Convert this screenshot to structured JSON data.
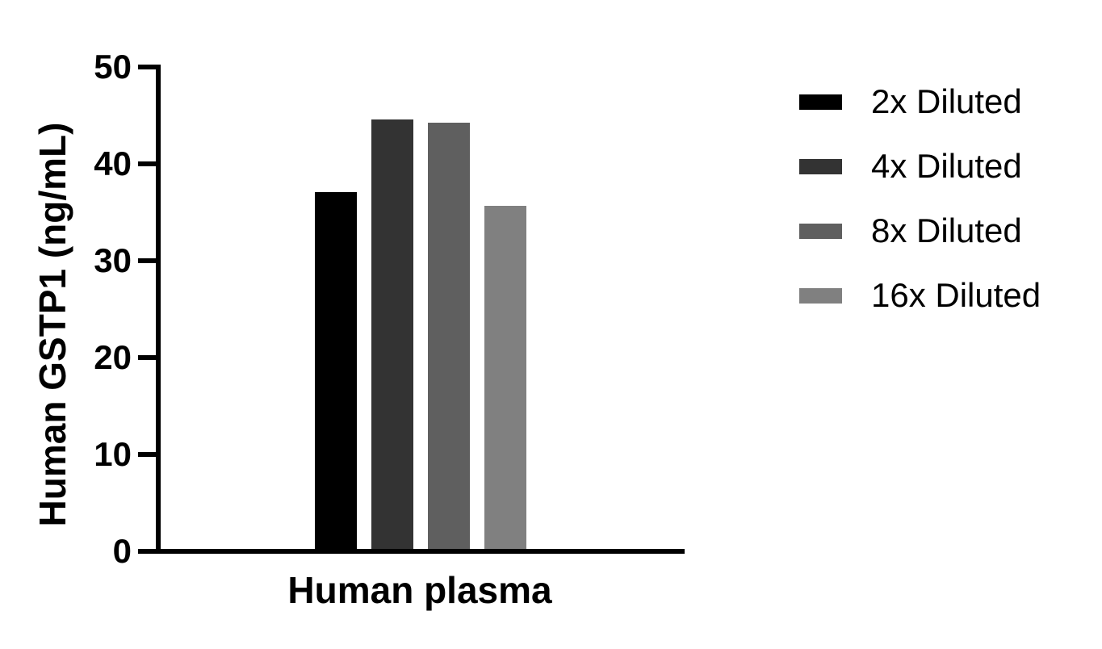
{
  "chart_data": {
    "type": "bar",
    "title": "",
    "xlabel": "",
    "ylabel": "Human GSTP1 (ng/mL)",
    "categories": [
      "Human plasma"
    ],
    "series": [
      {
        "name": "2x Diluted",
        "color": "#000000",
        "values": [
          36.8
        ]
      },
      {
        "name": "4x Diluted",
        "color": "#333333",
        "values": [
          44.3
        ]
      },
      {
        "name": "8x Diluted",
        "color": "#5f5f5f",
        "values": [
          44.0
        ]
      },
      {
        "name": "16x Diluted",
        "color": "#808080",
        "values": [
          35.4
        ]
      }
    ],
    "ylim": [
      0,
      50
    ],
    "yticks": [
      0,
      10,
      20,
      30,
      40,
      50
    ],
    "grid": false,
    "legend_position": "right",
    "background_color": "#ffffff",
    "axis_color": "#000000"
  }
}
